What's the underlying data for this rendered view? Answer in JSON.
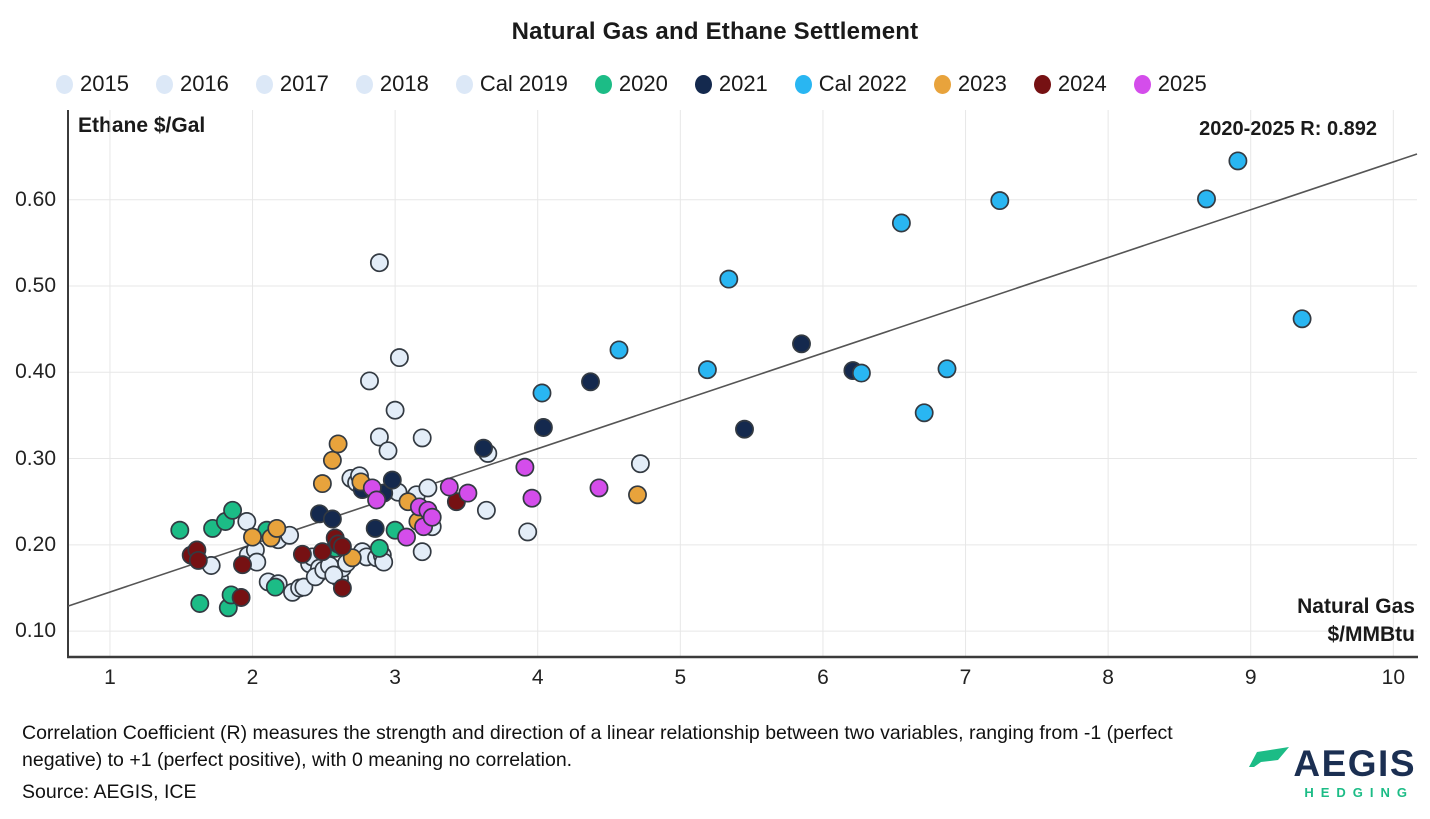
{
  "title": "Natural Gas and Ethane Settlement",
  "annotation": "2020-2025 R: 0.892",
  "axes": {
    "y_label": "Ethane $/Gal",
    "x_label_line1": "Natural Gas",
    "x_label_line2": "$/MMBtu",
    "y_ticks": [
      "0.60",
      "0.50",
      "0.40",
      "0.30",
      "0.20",
      "0.10"
    ],
    "x_ticks": [
      "1",
      "2",
      "3",
      "4",
      "5",
      "6",
      "7",
      "8",
      "9",
      "10"
    ]
  },
  "footer": {
    "note": "Correlation Coefficient (R) measures the strength and direction of a linear relationship between two variables, ranging from -1 (perfect negative) to +1 (perfect positive), with 0 meaning no correlation.",
    "source": "Source: AEGIS, ICE"
  },
  "logo": {
    "brand": "AEGIS",
    "sub": "HEDGING",
    "glyph_color": "#1cbc86",
    "brand_color": "#1b2f52"
  },
  "chart_data": {
    "type": "scatter",
    "title": "Natural Gas and Ethane Settlement",
    "xlabel": "Natural Gas $/MMBtu",
    "ylabel": "Ethane $/Gal",
    "xlim": [
      0.706,
      10.166
    ],
    "ylim": [
      0.07,
      0.704
    ],
    "x_tick_values": [
      1,
      2,
      3,
      4,
      5,
      6,
      7,
      8,
      9,
      10
    ],
    "y_tick_values": [
      0.1,
      0.2,
      0.3,
      0.4,
      0.5,
      0.6
    ],
    "grid": true,
    "legend_position": "top",
    "point_stroke": "#333a42",
    "grid_color": "#e7e7e7",
    "axis_color": "#3b3b3b",
    "trendline": {
      "x1": 0.706,
      "y1": 0.129,
      "x2": 10.166,
      "y2": 0.653,
      "color": "#555555",
      "label": "2020-2025 R: 0.892"
    },
    "series": [
      {
        "name": "2015",
        "color": "#dce8f7",
        "fill": "#e3edf8",
        "points": [
          [
            1.71,
            0.176
          ],
          [
            1.96,
            0.227
          ],
          [
            1.97,
            0.188
          ],
          [
            2.02,
            0.194
          ],
          [
            2.03,
            0.18
          ],
          [
            2.11,
            0.157
          ],
          [
            2.18,
            0.155
          ],
          [
            2.18,
            0.206
          ],
          [
            2.26,
            0.211
          ],
          [
            2.28,
            0.145
          ],
          [
            2.33,
            0.15
          ],
          [
            2.36,
            0.151
          ]
        ]
      },
      {
        "name": "2016",
        "color": "#dce8f7",
        "fill": "#e3edf8",
        "points": [
          [
            2.4,
            0.178
          ],
          [
            2.42,
            0.186
          ],
          [
            2.46,
            0.167
          ],
          [
            2.47,
            0.173
          ],
          [
            2.59,
            0.168
          ],
          [
            2.61,
            0.161
          ],
          [
            2.63,
            0.173
          ],
          [
            2.66,
            0.179
          ],
          [
            2.69,
            0.277
          ],
          [
            2.73,
            0.272
          ],
          [
            2.75,
            0.28
          ],
          [
            2.77,
            0.192
          ]
        ]
      },
      {
        "name": "2017",
        "color": "#dce8f7",
        "fill": "#e3edf8",
        "points": [
          [
            2.8,
            0.186
          ],
          [
            2.87,
            0.185
          ],
          [
            2.91,
            0.188
          ],
          [
            2.89,
            0.325
          ],
          [
            2.95,
            0.309
          ],
          [
            3.02,
            0.261
          ],
          [
            3.15,
            0.258
          ],
          [
            3.19,
            0.324
          ],
          [
            3.19,
            0.192
          ],
          [
            3.23,
            0.266
          ],
          [
            3.26,
            0.221
          ],
          [
            2.92,
            0.18
          ]
        ]
      },
      {
        "name": "2018",
        "color": "#dce8f7",
        "fill": "#e3edf8",
        "points": [
          [
            2.82,
            0.39
          ],
          [
            2.89,
            0.527
          ],
          [
            3.0,
            0.356
          ],
          [
            3.03,
            0.417
          ],
          [
            3.64,
            0.24
          ],
          [
            3.65,
            0.306
          ],
          [
            3.93,
            0.215
          ],
          [
            4.72,
            0.294
          ]
        ]
      },
      {
        "name": "Cal 2019",
        "color": "#dce8f7",
        "fill": "#e3edf8",
        "points": [
          [
            2.44,
            0.163
          ],
          [
            2.5,
            0.171
          ],
          [
            2.54,
            0.176
          ],
          [
            2.57,
            0.165
          ]
        ]
      },
      {
        "name": "2020",
        "color": "#1cbc86",
        "fill": "#1cbc86",
        "points": [
          [
            1.49,
            0.217
          ],
          [
            1.63,
            0.132
          ],
          [
            1.72,
            0.219
          ],
          [
            1.81,
            0.227
          ],
          [
            1.83,
            0.127
          ],
          [
            1.85,
            0.142
          ],
          [
            1.86,
            0.24
          ],
          [
            2.1,
            0.217
          ],
          [
            2.16,
            0.151
          ],
          [
            2.58,
            0.196
          ],
          [
            2.89,
            0.196
          ],
          [
            3.0,
            0.217
          ]
        ]
      },
      {
        "name": "2021",
        "color": "#14294e",
        "fill": "#14294e",
        "points": [
          [
            2.47,
            0.236
          ],
          [
            2.56,
            0.23
          ],
          [
            2.77,
            0.264
          ],
          [
            2.86,
            0.219
          ],
          [
            2.92,
            0.26
          ],
          [
            2.98,
            0.275
          ],
          [
            3.62,
            0.312
          ],
          [
            4.04,
            0.336
          ],
          [
            4.37,
            0.389
          ],
          [
            5.45,
            0.334
          ],
          [
            5.85,
            0.433
          ],
          [
            6.21,
            0.402
          ]
        ]
      },
      {
        "name": "Cal 2022",
        "color": "#29b6f2",
        "fill": "#29b6f2",
        "points": [
          [
            4.03,
            0.376
          ],
          [
            4.57,
            0.426
          ],
          [
            5.19,
            0.403
          ],
          [
            5.34,
            0.508
          ],
          [
            6.27,
            0.399
          ],
          [
            6.55,
            0.573
          ],
          [
            6.71,
            0.353
          ],
          [
            6.87,
            0.404
          ],
          [
            7.24,
            0.599
          ],
          [
            8.69,
            0.601
          ],
          [
            8.91,
            0.645
          ],
          [
            9.36,
            0.462
          ]
        ]
      },
      {
        "name": "2023",
        "color": "#e8a33c",
        "fill": "#e8a33c",
        "points": [
          [
            2.0,
            0.209
          ],
          [
            2.13,
            0.208
          ],
          [
            2.17,
            0.219
          ],
          [
            2.49,
            0.271
          ],
          [
            2.56,
            0.298
          ],
          [
            2.6,
            0.317
          ],
          [
            2.7,
            0.185
          ],
          [
            2.76,
            0.273
          ],
          [
            3.09,
            0.25
          ],
          [
            3.16,
            0.227
          ],
          [
            4.7,
            0.258
          ]
        ]
      },
      {
        "name": "2024",
        "color": "#761113",
        "fill": "#761113",
        "points": [
          [
            1.57,
            0.188
          ],
          [
            1.61,
            0.194
          ],
          [
            1.62,
            0.182
          ],
          [
            1.92,
            0.139
          ],
          [
            1.93,
            0.177
          ],
          [
            2.35,
            0.189
          ],
          [
            2.49,
            0.192
          ],
          [
            2.58,
            0.208
          ],
          [
            2.6,
            0.201
          ],
          [
            2.63,
            0.198
          ],
          [
            2.63,
            0.15
          ],
          [
            3.43,
            0.25
          ]
        ]
      },
      {
        "name": "2025",
        "color": "#d44deb",
        "fill": "#d44deb",
        "points": [
          [
            2.84,
            0.266
          ],
          [
            2.87,
            0.252
          ],
          [
            3.08,
            0.209
          ],
          [
            3.17,
            0.244
          ],
          [
            3.2,
            0.221
          ],
          [
            3.23,
            0.24
          ],
          [
            3.26,
            0.232
          ],
          [
            3.38,
            0.267
          ],
          [
            3.51,
            0.26
          ],
          [
            3.91,
            0.29
          ],
          [
            3.96,
            0.254
          ],
          [
            4.43,
            0.266
          ]
        ]
      }
    ]
  }
}
